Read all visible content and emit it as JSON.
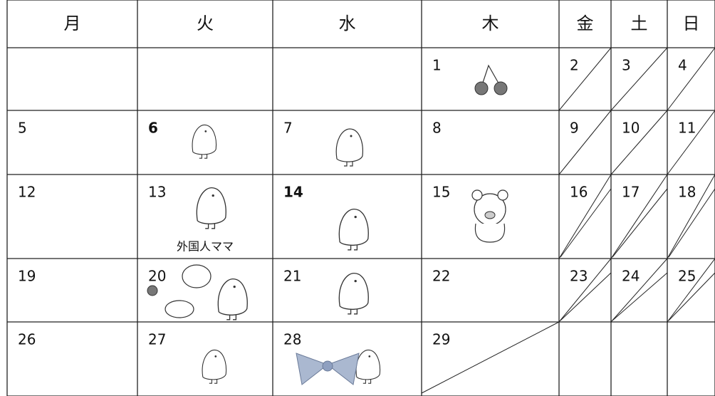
{
  "header": {
    "days": [
      "月",
      "火",
      "水",
      "木",
      "金",
      "土",
      "日"
    ]
  },
  "table": {
    "rows": [
      [
        null,
        null,
        null,
        {
          "date": 1
        },
        {
          "date": 2
        },
        {
          "date": 3
        },
        {
          "date": 4
        }
      ],
      [
        {
          "date": 5
        },
        {
          "date": 6
        },
        {
          "date": 7
        },
        {
          "date": 8
        },
        {
          "date": 9
        },
        {
          "date": 10
        },
        {
          "date": 11
        }
      ],
      [
        {
          "date": 12
        },
        {
          "date": 13,
          "note": "外国人ママ"
        },
        {
          "date": 14
        },
        {
          "date": 15
        },
        {
          "date": 16
        },
        {
          "date": 17
        },
        {
          "date": 18
        }
      ],
      [
        {
          "date": 19
        },
        {
          "date": 20
        },
        {
          "date": 21
        },
        {
          "date": 22
        },
        {
          "date": 23
        },
        {
          "date": 24
        },
        {
          "date": 25
        }
      ],
      [
        {
          "date": 26
        },
        {
          "date": 27
        },
        {
          "date": 28
        },
        {
          "date": 29
        },
        null,
        null,
        null
      ]
    ]
  }
}
